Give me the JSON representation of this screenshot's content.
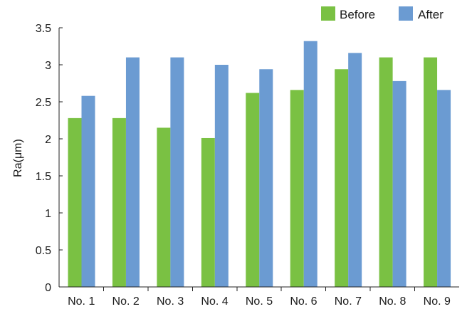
{
  "chart_data": {
    "type": "bar",
    "title": "",
    "xlabel": "",
    "ylabel": "Ra(μm)",
    "ylim": [
      0,
      3.5
    ],
    "yticks": [
      "0",
      "0.5",
      "1",
      "1.5",
      "2",
      "2.5",
      "3",
      "3.5"
    ],
    "grid": false,
    "legend_position": "top-right",
    "categories": [
      "No. 1",
      "No. 2",
      "No. 3",
      "No. 4",
      "No. 5",
      "No. 6",
      "No. 7",
      "No. 8",
      "No. 9"
    ],
    "series": [
      {
        "name": "Before",
        "color": "#7ac143",
        "values": [
          2.28,
          2.28,
          2.15,
          2.01,
          2.62,
          2.66,
          2.94,
          3.1,
          3.1
        ]
      },
      {
        "name": "After",
        "color": "#6b9bd2",
        "values": [
          2.58,
          3.1,
          3.1,
          3.0,
          2.94,
          3.32,
          3.16,
          2.78,
          2.66
        ]
      }
    ]
  }
}
